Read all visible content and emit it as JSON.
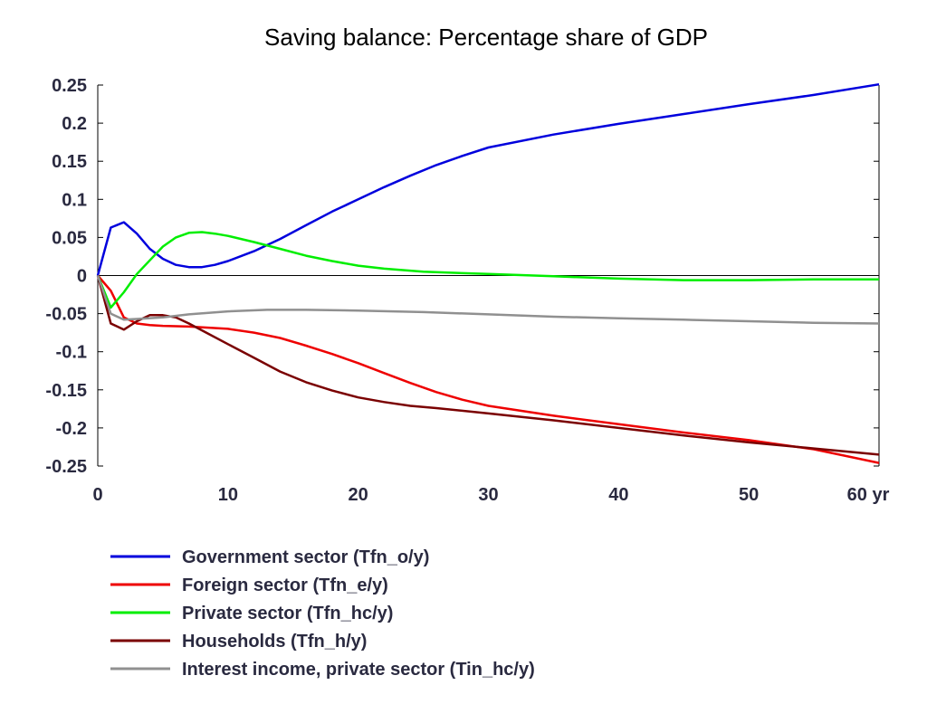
{
  "chart_data": {
    "type": "line",
    "title": "Saving balance: Percentage share of GDP",
    "xlabel": "",
    "ylabel": "",
    "x_unit": "yr",
    "xlim": [
      0,
      60
    ],
    "ylim": [
      -0.25,
      0.25
    ],
    "x_ticks": [
      0,
      10,
      20,
      30,
      40,
      50,
      60
    ],
    "x_tick_labels": [
      "0",
      "10",
      "20",
      "30",
      "40",
      "50",
      "60 yr"
    ],
    "y_ticks": [
      0.25,
      0.2,
      0.15,
      0.1,
      0.05,
      0,
      -0.05,
      -0.1,
      -0.15,
      -0.2,
      -0.25
    ],
    "y_tick_labels": [
      "0.25",
      "0.2",
      "0.15",
      "0.1",
      "0.05",
      "0",
      "-0.05",
      "-0.1",
      "-0.15",
      "-0.2",
      "-0.25"
    ],
    "zero_line": true,
    "grid": false,
    "legend_position": "bottom",
    "series": [
      {
        "name": "Government sector (Tfn_o/y)",
        "color": "#0000dd",
        "points": [
          [
            0,
            0
          ],
          [
            1,
            0.063
          ],
          [
            2,
            0.07
          ],
          [
            3,
            0.055
          ],
          [
            4,
            0.035
          ],
          [
            5,
            0.022
          ],
          [
            6,
            0.014
          ],
          [
            7,
            0.011
          ],
          [
            8,
            0.011
          ],
          [
            9,
            0.014
          ],
          [
            10,
            0.019
          ],
          [
            12,
            0.032
          ],
          [
            14,
            0.048
          ],
          [
            16,
            0.066
          ],
          [
            18,
            0.084
          ],
          [
            20,
            0.1
          ],
          [
            22,
            0.116
          ],
          [
            24,
            0.131
          ],
          [
            26,
            0.145
          ],
          [
            28,
            0.157
          ],
          [
            30,
            0.168
          ],
          [
            35,
            0.185
          ],
          [
            40,
            0.199
          ],
          [
            45,
            0.212
          ],
          [
            50,
            0.225
          ],
          [
            55,
            0.237
          ],
          [
            60,
            0.251
          ]
        ]
      },
      {
        "name": "Foreign sector (Tfn_e/y)",
        "color": "#ee0000",
        "points": [
          [
            0,
            0
          ],
          [
            1,
            -0.02
          ],
          [
            2,
            -0.055
          ],
          [
            3,
            -0.063
          ],
          [
            4,
            -0.065
          ],
          [
            5,
            -0.066
          ],
          [
            7,
            -0.067
          ],
          [
            10,
            -0.07
          ],
          [
            12,
            -0.075
          ],
          [
            14,
            -0.082
          ],
          [
            16,
            -0.092
          ],
          [
            18,
            -0.103
          ],
          [
            20,
            -0.115
          ],
          [
            22,
            -0.128
          ],
          [
            24,
            -0.141
          ],
          [
            26,
            -0.153
          ],
          [
            28,
            -0.163
          ],
          [
            30,
            -0.171
          ],
          [
            35,
            -0.184
          ],
          [
            40,
            -0.195
          ],
          [
            45,
            -0.206
          ],
          [
            50,
            -0.216
          ],
          [
            55,
            -0.228
          ],
          [
            60,
            -0.246
          ]
        ]
      },
      {
        "name": "Private sector (Tfn_hc/y)",
        "color": "#00ee00",
        "points": [
          [
            0,
            0
          ],
          [
            1,
            -0.042
          ],
          [
            2,
            -0.022
          ],
          [
            3,
            0.002
          ],
          [
            4,
            0.02
          ],
          [
            5,
            0.038
          ],
          [
            6,
            0.05
          ],
          [
            7,
            0.056
          ],
          [
            8,
            0.057
          ],
          [
            9,
            0.055
          ],
          [
            10,
            0.052
          ],
          [
            12,
            0.044
          ],
          [
            14,
            0.035
          ],
          [
            16,
            0.026
          ],
          [
            18,
            0.019
          ],
          [
            20,
            0.013
          ],
          [
            22,
            0.009
          ],
          [
            25,
            0.005
          ],
          [
            30,
            0.002
          ],
          [
            35,
            -0.001
          ],
          [
            40,
            -0.004
          ],
          [
            45,
            -0.006
          ],
          [
            50,
            -0.006
          ],
          [
            55,
            -0.005
          ],
          [
            60,
            -0.005
          ]
        ]
      },
      {
        "name": "Households (Tfn_h/y)",
        "color": "#7a0000",
        "points": [
          [
            0,
            0
          ],
          [
            1,
            -0.063
          ],
          [
            2,
            -0.071
          ],
          [
            3,
            -0.06
          ],
          [
            4,
            -0.052
          ],
          [
            5,
            -0.052
          ],
          [
            6,
            -0.055
          ],
          [
            7,
            -0.063
          ],
          [
            8,
            -0.072
          ],
          [
            10,
            -0.09
          ],
          [
            12,
            -0.108
          ],
          [
            14,
            -0.126
          ],
          [
            16,
            -0.14
          ],
          [
            18,
            -0.151
          ],
          [
            20,
            -0.16
          ],
          [
            22,
            -0.166
          ],
          [
            24,
            -0.171
          ],
          [
            26,
            -0.174
          ],
          [
            30,
            -0.181
          ],
          [
            35,
            -0.19
          ],
          [
            40,
            -0.2
          ],
          [
            45,
            -0.21
          ],
          [
            50,
            -0.219
          ],
          [
            55,
            -0.227
          ],
          [
            60,
            -0.235
          ]
        ]
      },
      {
        "name": "Interest income, private sector (Tin_hc/y)",
        "color": "#909090",
        "points": [
          [
            0,
            0
          ],
          [
            1,
            -0.05
          ],
          [
            2,
            -0.058
          ],
          [
            3,
            -0.057
          ],
          [
            5,
            -0.055
          ],
          [
            7,
            -0.051
          ],
          [
            10,
            -0.047
          ],
          [
            13,
            -0.045
          ],
          [
            16,
            -0.045
          ],
          [
            20,
            -0.046
          ],
          [
            25,
            -0.048
          ],
          [
            30,
            -0.051
          ],
          [
            35,
            -0.054
          ],
          [
            40,
            -0.056
          ],
          [
            45,
            -0.058
          ],
          [
            50,
            -0.06
          ],
          [
            55,
            -0.062
          ],
          [
            60,
            -0.063
          ]
        ]
      }
    ]
  }
}
